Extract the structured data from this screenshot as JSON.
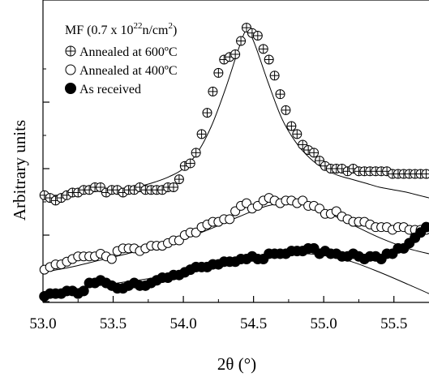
{
  "chart_data": {
    "type": "scatter",
    "xlabel": "2θ (°)",
    "ylabel": "Arbitrary units",
    "x_ticks": [
      "53.0",
      "53.5",
      "54.0",
      "54.5",
      "55.0",
      "55.5"
    ],
    "xlim": [
      53.0,
      55.75
    ],
    "ylim": [
      0,
      10
    ],
    "y_ticks_labeled": false,
    "grid": false,
    "legend_position": "top-left",
    "legend": {
      "title_text": "MF (0.7 x 10",
      "title_sup": "22",
      "title_tail": "n/cm",
      "title_sup2": "2",
      "title_close": ")",
      "entries": [
        "Annealed at 600ºC",
        "Annealed at 400ºC",
        "As received"
      ]
    },
    "series": [
      {
        "name": "Annealed at 600ºC",
        "marker": "crossed-circle",
        "x": [
          53.01,
          53.05,
          53.09,
          53.13,
          53.17,
          53.21,
          53.25,
          53.29,
          53.33,
          53.37,
          53.41,
          53.45,
          53.49,
          53.53,
          53.57,
          53.61,
          53.65,
          53.69,
          53.73,
          53.77,
          53.81,
          53.85,
          53.89,
          53.93,
          53.97,
          54.01,
          54.05,
          54.09,
          54.13,
          54.17,
          54.21,
          54.25,
          54.29,
          54.33,
          54.37,
          54.41,
          54.45,
          54.49,
          54.53,
          54.57,
          54.61,
          54.65,
          54.69,
          54.73,
          54.77,
          54.81,
          54.85,
          54.89,
          54.93,
          54.97,
          55.01,
          55.05,
          55.09,
          55.13,
          55.17,
          55.21,
          55.25,
          55.29,
          55.33,
          55.37,
          55.41,
          55.45,
          55.49,
          55.53,
          55.57,
          55.61,
          55.65,
          55.69,
          55.73
        ],
        "y": [
          4.0,
          3.9,
          3.8,
          3.9,
          4.0,
          4.1,
          4.1,
          4.2,
          4.2,
          4.3,
          4.3,
          4.1,
          4.2,
          4.2,
          4.1,
          4.2,
          4.2,
          4.3,
          4.2,
          4.2,
          4.2,
          4.2,
          4.3,
          4.3,
          4.6,
          5.1,
          5.2,
          5.6,
          6.3,
          7.1,
          7.9,
          8.6,
          9.1,
          9.2,
          9.3,
          9.8,
          10.3,
          10.1,
          10.0,
          9.5,
          9.1,
          8.5,
          7.8,
          7.2,
          6.6,
          6.3,
          5.9,
          5.7,
          5.6,
          5.3,
          5.1,
          5.0,
          5.0,
          5.0,
          4.9,
          5.0,
          4.9,
          4.9,
          4.9,
          4.9,
          4.9,
          4.9,
          4.8,
          4.8,
          4.8,
          4.8,
          4.8,
          4.8,
          4.8
        ]
      },
      {
        "name": "Annealed at 400ºC",
        "marker": "open-circle",
        "x": [
          53.01,
          53.05,
          53.09,
          53.13,
          53.17,
          53.21,
          53.25,
          53.29,
          53.33,
          53.37,
          53.41,
          53.45,
          53.49,
          53.53,
          53.57,
          53.61,
          53.65,
          53.69,
          53.73,
          53.77,
          53.81,
          53.85,
          53.89,
          53.93,
          53.97,
          54.01,
          54.05,
          54.09,
          54.13,
          54.17,
          54.21,
          54.25,
          54.29,
          54.33,
          54.37,
          54.41,
          54.45,
          54.49,
          54.53,
          54.57,
          54.61,
          54.65,
          54.69,
          54.73,
          54.77,
          54.81,
          54.85,
          54.89,
          54.93,
          54.97,
          55.01,
          55.05,
          55.09,
          55.13,
          55.17,
          55.21,
          55.25,
          55.29,
          55.33,
          55.37,
          55.41,
          55.45,
          55.49,
          55.53,
          55.57,
          55.61,
          55.65,
          55.69,
          55.73
        ],
        "y": [
          1.2,
          1.3,
          1.4,
          1.4,
          1.5,
          1.6,
          1.7,
          1.7,
          1.7,
          1.7,
          1.8,
          1.7,
          1.6,
          1.9,
          2.0,
          2.0,
          2.0,
          1.9,
          2.0,
          2.1,
          2.1,
          2.1,
          2.2,
          2.3,
          2.3,
          2.5,
          2.6,
          2.6,
          2.8,
          2.9,
          3.0,
          3.0,
          3.1,
          3.1,
          3.4,
          3.6,
          3.7,
          3.5,
          3.6,
          3.8,
          3.9,
          3.8,
          3.7,
          3.8,
          3.8,
          3.7,
          3.8,
          3.6,
          3.6,
          3.5,
          3.3,
          3.3,
          3.4,
          3.2,
          3.1,
          3.0,
          3.0,
          3.0,
          2.9,
          2.8,
          2.8,
          2.8,
          2.7,
          2.8,
          2.8,
          2.7,
          2.7,
          2.7,
          2.7
        ]
      },
      {
        "name": "As received",
        "marker": "filled-circle",
        "x": [
          53.01,
          53.05,
          53.09,
          53.13,
          53.17,
          53.21,
          53.25,
          53.29,
          53.33,
          53.37,
          53.41,
          53.45,
          53.49,
          53.53,
          53.57,
          53.61,
          53.65,
          53.69,
          53.73,
          53.77,
          53.81,
          53.85,
          53.89,
          53.93,
          53.97,
          54.01,
          54.05,
          54.09,
          54.13,
          54.17,
          54.21,
          54.25,
          54.29,
          54.33,
          54.37,
          54.41,
          54.45,
          54.49,
          54.53,
          54.57,
          54.61,
          54.65,
          54.69,
          54.73,
          54.77,
          54.81,
          54.85,
          54.89,
          54.93,
          54.97,
          55.01,
          55.05,
          55.09,
          55.13,
          55.17,
          55.21,
          55.25,
          55.29,
          55.33,
          55.37,
          55.41,
          55.45,
          55.49,
          55.53,
          55.57,
          55.61,
          55.65,
          55.69,
          55.73
        ],
        "y": [
          0.2,
          0.3,
          0.3,
          0.3,
          0.4,
          0.4,
          0.3,
          0.4,
          0.7,
          0.7,
          0.8,
          0.7,
          0.6,
          0.5,
          0.5,
          0.6,
          0.7,
          0.6,
          0.6,
          0.7,
          0.8,
          0.9,
          0.9,
          1.0,
          1.0,
          1.1,
          1.2,
          1.3,
          1.3,
          1.3,
          1.4,
          1.4,
          1.5,
          1.5,
          1.5,
          1.6,
          1.6,
          1.7,
          1.6,
          1.6,
          1.8,
          1.8,
          1.8,
          1.8,
          1.9,
          1.9,
          1.9,
          2.0,
          2.0,
          1.8,
          1.9,
          1.8,
          1.8,
          1.7,
          1.7,
          1.8,
          1.7,
          1.6,
          1.7,
          1.7,
          1.6,
          1.8,
          1.8,
          2.0,
          2.0,
          2.2,
          2.4,
          2.6,
          2.8
        ]
      }
    ],
    "fit_curves": [
      {
        "for_series": "Annealed at 600ºC",
        "x": [
          53.0,
          53.1,
          53.2,
          53.3,
          53.4,
          53.5,
          53.6,
          53.7,
          53.8,
          53.9,
          54.0,
          54.1,
          54.2,
          54.3,
          54.4,
          54.45,
          54.5,
          54.6,
          54.7,
          54.8,
          54.9,
          55.0,
          55.1,
          55.2,
          55.3,
          55.4,
          55.5,
          55.6,
          55.75
        ],
        "y": [
          4.0,
          4.0,
          4.05,
          4.1,
          4.15,
          4.2,
          4.28,
          4.35,
          4.5,
          4.7,
          5.0,
          5.6,
          6.6,
          8.0,
          9.6,
          10.2,
          9.8,
          8.3,
          6.9,
          6.0,
          5.4,
          5.0,
          4.75,
          4.6,
          4.45,
          4.3,
          4.2,
          4.1,
          3.9
        ]
      },
      {
        "for_series": "Annealed at 400ºC",
        "x": [
          53.0,
          53.2,
          53.4,
          53.6,
          53.8,
          54.0,
          54.2,
          54.4,
          54.6,
          54.8,
          55.0,
          55.2,
          55.4,
          55.6,
          55.75
        ],
        "y": [
          1.1,
          1.3,
          1.55,
          1.8,
          2.05,
          2.35,
          2.75,
          3.2,
          3.6,
          3.7,
          3.4,
          2.9,
          2.4,
          2.0,
          1.8
        ]
      },
      {
        "for_series": "As received",
        "x": [
          53.0,
          53.2,
          53.4,
          53.6,
          53.8,
          54.0,
          54.2,
          54.4,
          54.6,
          54.8,
          55.0,
          55.2,
          55.4,
          55.6,
          55.75
        ],
        "y": [
          0.3,
          0.45,
          0.6,
          0.75,
          0.9,
          1.1,
          1.3,
          1.5,
          1.7,
          1.8,
          1.75,
          1.5,
          1.1,
          0.65,
          0.3
        ]
      }
    ]
  }
}
